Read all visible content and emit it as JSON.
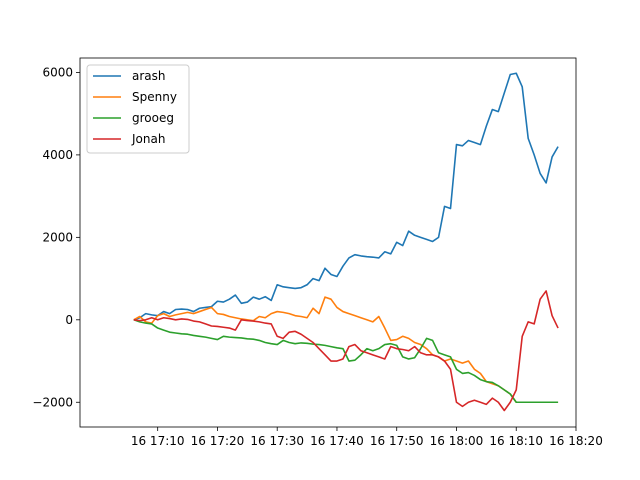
{
  "chart_data": {
    "type": "line",
    "title": "",
    "xlabel": "",
    "ylabel": "",
    "x_unit": "time of day (HH:MM), day 16",
    "xlim": [
      "16:57",
      "18:20"
    ],
    "ylim": [
      -2600,
      6350
    ],
    "x_ticks": [
      "17:10",
      "17:20",
      "17:30",
      "17:40",
      "17:50",
      "18:00",
      "18:10",
      "18:20"
    ],
    "x_tick_labels": [
      "16 17:10",
      "16 17:20",
      "16 17:30",
      "16 17:40",
      "16 17:50",
      "16 18:00",
      "16 18:10",
      "16 18:20"
    ],
    "y_ticks": [
      -2000,
      0,
      2000,
      4000,
      6000
    ],
    "y_tick_labels": [
      "−2000",
      "0",
      "2000",
      "4000",
      "6000"
    ],
    "grid": false,
    "legend_position": "top-left",
    "series": [
      {
        "name": "arash",
        "color": "#1f77b4",
        "points": [
          [
            "17:06",
            0
          ],
          [
            "17:07",
            50
          ],
          [
            "17:08",
            150
          ],
          [
            "17:09",
            120
          ],
          [
            "17:10",
            100
          ],
          [
            "17:11",
            200
          ],
          [
            "17:12",
            150
          ],
          [
            "17:13",
            250
          ],
          [
            "17:14",
            260
          ],
          [
            "17:15",
            250
          ],
          [
            "17:16",
            200
          ],
          [
            "17:17",
            280
          ],
          [
            "17:18",
            300
          ],
          [
            "17:19",
            320
          ],
          [
            "17:20",
            450
          ],
          [
            "17:21",
            430
          ],
          [
            "17:22",
            500
          ],
          [
            "17:23",
            600
          ],
          [
            "17:24",
            400
          ],
          [
            "17:25",
            430
          ],
          [
            "17:26",
            550
          ],
          [
            "17:27",
            500
          ],
          [
            "17:28",
            560
          ],
          [
            "17:29",
            470
          ],
          [
            "17:30",
            850
          ],
          [
            "17:31",
            800
          ],
          [
            "17:32",
            780
          ],
          [
            "17:33",
            760
          ],
          [
            "17:34",
            780
          ],
          [
            "17:35",
            850
          ],
          [
            "17:36",
            1000
          ],
          [
            "17:37",
            950
          ],
          [
            "17:38",
            1250
          ],
          [
            "17:39",
            1100
          ],
          [
            "17:40",
            1050
          ],
          [
            "17:41",
            1300
          ],
          [
            "17:42",
            1500
          ],
          [
            "17:43",
            1580
          ],
          [
            "17:44",
            1550
          ],
          [
            "17:45",
            1530
          ],
          [
            "17:46",
            1520
          ],
          [
            "17:47",
            1500
          ],
          [
            "17:48",
            1650
          ],
          [
            "17:49",
            1600
          ],
          [
            "17:50",
            1880
          ],
          [
            "17:51",
            1800
          ],
          [
            "17:52",
            2150
          ],
          [
            "17:53",
            2050
          ],
          [
            "17:54",
            2000
          ],
          [
            "17:55",
            1950
          ],
          [
            "17:56",
            1900
          ],
          [
            "17:57",
            2000
          ],
          [
            "17:58",
            2750
          ],
          [
            "17:59",
            2700
          ],
          [
            "18:00",
            4250
          ],
          [
            "18:01",
            4220
          ],
          [
            "18:02",
            4350
          ],
          [
            "18:03",
            4300
          ],
          [
            "18:04",
            4250
          ],
          [
            "18:05",
            4700
          ],
          [
            "18:06",
            5100
          ],
          [
            "18:07",
            5050
          ],
          [
            "18:08",
            5500
          ],
          [
            "18:09",
            5950
          ],
          [
            "18:10",
            5980
          ],
          [
            "18:11",
            5650
          ],
          [
            "18:12",
            4400
          ],
          [
            "18:13",
            4000
          ],
          [
            "18:14",
            3550
          ],
          [
            "18:15",
            3320
          ],
          [
            "18:16",
            3950
          ],
          [
            "18:17",
            4200
          ]
        ]
      },
      {
        "name": "Spenny",
        "color": "#ff7f0e",
        "points": [
          [
            "17:06",
            0
          ],
          [
            "17:07",
            80
          ],
          [
            "17:08",
            -50
          ],
          [
            "17:09",
            -80
          ],
          [
            "17:10",
            100
          ],
          [
            "17:11",
            150
          ],
          [
            "17:12",
            80
          ],
          [
            "17:13",
            120
          ],
          [
            "17:14",
            150
          ],
          [
            "17:15",
            180
          ],
          [
            "17:16",
            150
          ],
          [
            "17:17",
            200
          ],
          [
            "17:18",
            250
          ],
          [
            "17:19",
            300
          ],
          [
            "17:20",
            150
          ],
          [
            "17:21",
            130
          ],
          [
            "17:22",
            80
          ],
          [
            "17:23",
            50
          ],
          [
            "17:24",
            20
          ],
          [
            "17:25",
            0
          ],
          [
            "17:26",
            -20
          ],
          [
            "17:27",
            80
          ],
          [
            "17:28",
            50
          ],
          [
            "17:29",
            150
          ],
          [
            "17:30",
            200
          ],
          [
            "17:31",
            180
          ],
          [
            "17:32",
            150
          ],
          [
            "17:33",
            100
          ],
          [
            "17:34",
            80
          ],
          [
            "17:35",
            50
          ],
          [
            "17:36",
            280
          ],
          [
            "17:37",
            150
          ],
          [
            "17:38",
            550
          ],
          [
            "17:39",
            500
          ],
          [
            "17:40",
            300
          ],
          [
            "17:41",
            200
          ],
          [
            "17:42",
            150
          ],
          [
            "17:43",
            100
          ],
          [
            "17:44",
            50
          ],
          [
            "17:45",
            0
          ],
          [
            "17:46",
            -50
          ],
          [
            "17:47",
            80
          ],
          [
            "17:48",
            -200
          ],
          [
            "17:49",
            -500
          ],
          [
            "17:50",
            -480
          ],
          [
            "17:51",
            -400
          ],
          [
            "17:52",
            -450
          ],
          [
            "17:53",
            -550
          ],
          [
            "17:54",
            -600
          ],
          [
            "17:55",
            -700
          ],
          [
            "17:56",
            -850
          ],
          [
            "17:57",
            -900
          ],
          [
            "17:58",
            -1000
          ],
          [
            "17:59",
            -950
          ],
          [
            "18:00",
            -1000
          ],
          [
            "18:01",
            -1050
          ],
          [
            "18:02",
            -1000
          ],
          [
            "18:03",
            -1200
          ],
          [
            "18:04",
            -1300
          ],
          [
            "18:05",
            -1500
          ],
          [
            "18:06",
            -1550
          ],
          [
            "18:07",
            -1600
          ],
          [
            "18:08",
            -1700
          ],
          [
            "18:09",
            -1800
          ],
          [
            "18:10",
            -2000
          ],
          [
            "18:11",
            -2000
          ],
          [
            "18:12",
            -2000
          ],
          [
            "18:13",
            -2000
          ],
          [
            "18:14",
            -2000
          ],
          [
            "18:15",
            -2000
          ],
          [
            "18:16",
            -2000
          ],
          [
            "18:17",
            -2000
          ]
        ]
      },
      {
        "name": "grooeg",
        "color": "#2ca02c",
        "points": [
          [
            "17:06",
            0
          ],
          [
            "17:07",
            -50
          ],
          [
            "17:08",
            -80
          ],
          [
            "17:09",
            -100
          ],
          [
            "17:10",
            -200
          ],
          [
            "17:11",
            -250
          ],
          [
            "17:12",
            -300
          ],
          [
            "17:13",
            -320
          ],
          [
            "17:14",
            -340
          ],
          [
            "17:15",
            -350
          ],
          [
            "17:16",
            -380
          ],
          [
            "17:17",
            -400
          ],
          [
            "17:18",
            -420
          ],
          [
            "17:19",
            -450
          ],
          [
            "17:20",
            -480
          ],
          [
            "17:21",
            -400
          ],
          [
            "17:22",
            -420
          ],
          [
            "17:23",
            -430
          ],
          [
            "17:24",
            -440
          ],
          [
            "17:25",
            -460
          ],
          [
            "17:26",
            -470
          ],
          [
            "17:27",
            -500
          ],
          [
            "17:28",
            -550
          ],
          [
            "17:29",
            -580
          ],
          [
            "17:30",
            -600
          ],
          [
            "17:31",
            -500
          ],
          [
            "17:32",
            -550
          ],
          [
            "17:33",
            -580
          ],
          [
            "17:34",
            -560
          ],
          [
            "17:35",
            -570
          ],
          [
            "17:36",
            -590
          ],
          [
            "17:37",
            -600
          ],
          [
            "17:38",
            -620
          ],
          [
            "17:39",
            -650
          ],
          [
            "17:40",
            -680
          ],
          [
            "17:41",
            -700
          ],
          [
            "17:42",
            -1000
          ],
          [
            "17:43",
            -980
          ],
          [
            "17:44",
            -850
          ],
          [
            "17:45",
            -700
          ],
          [
            "17:46",
            -750
          ],
          [
            "17:47",
            -700
          ],
          [
            "17:48",
            -600
          ],
          [
            "17:49",
            -580
          ],
          [
            "17:50",
            -620
          ],
          [
            "17:51",
            -900
          ],
          [
            "17:52",
            -950
          ],
          [
            "17:53",
            -920
          ],
          [
            "17:54",
            -700
          ],
          [
            "17:55",
            -450
          ],
          [
            "17:56",
            -500
          ],
          [
            "17:57",
            -800
          ],
          [
            "17:58",
            -850
          ],
          [
            "17:59",
            -900
          ],
          [
            "18:00",
            -1200
          ],
          [
            "18:01",
            -1300
          ],
          [
            "18:02",
            -1280
          ],
          [
            "18:03",
            -1350
          ],
          [
            "18:04",
            -1450
          ],
          [
            "18:05",
            -1500
          ],
          [
            "18:06",
            -1520
          ],
          [
            "18:07",
            -1600
          ],
          [
            "18:08",
            -1700
          ],
          [
            "18:09",
            -1800
          ],
          [
            "18:10",
            -2000
          ],
          [
            "18:11",
            -2000
          ],
          [
            "18:12",
            -2000
          ],
          [
            "18:13",
            -2000
          ],
          [
            "18:14",
            -2000
          ],
          [
            "18:15",
            -2000
          ],
          [
            "18:16",
            -2000
          ],
          [
            "18:17",
            -2000
          ]
        ]
      },
      {
        "name": "Jonah",
        "color": "#d62728",
        "points": [
          [
            "17:06",
            0
          ],
          [
            "17:07",
            -20
          ],
          [
            "17:08",
            0
          ],
          [
            "17:09",
            50
          ],
          [
            "17:10",
            0
          ],
          [
            "17:11",
            50
          ],
          [
            "17:12",
            30
          ],
          [
            "17:13",
            0
          ],
          [
            "17:14",
            20
          ],
          [
            "17:15",
            10
          ],
          [
            "17:16",
            -30
          ],
          [
            "17:17",
            -50
          ],
          [
            "17:18",
            -100
          ],
          [
            "17:19",
            -150
          ],
          [
            "17:20",
            -160
          ],
          [
            "17:21",
            -180
          ],
          [
            "17:22",
            -200
          ],
          [
            "17:23",
            -250
          ],
          [
            "17:24",
            0
          ],
          [
            "17:25",
            -20
          ],
          [
            "17:26",
            -30
          ],
          [
            "17:27",
            -50
          ],
          [
            "17:28",
            -80
          ],
          [
            "17:29",
            -100
          ],
          [
            "17:30",
            -400
          ],
          [
            "17:31",
            -450
          ],
          [
            "17:32",
            -300
          ],
          [
            "17:33",
            -280
          ],
          [
            "17:34",
            -350
          ],
          [
            "17:35",
            -450
          ],
          [
            "17:36",
            -550
          ],
          [
            "17:37",
            -700
          ],
          [
            "17:38",
            -850
          ],
          [
            "17:39",
            -1000
          ],
          [
            "17:40",
            -1000
          ],
          [
            "17:41",
            -950
          ],
          [
            "17:42",
            -650
          ],
          [
            "17:43",
            -600
          ],
          [
            "17:44",
            -750
          ],
          [
            "17:45",
            -800
          ],
          [
            "17:46",
            -850
          ],
          [
            "17:47",
            -900
          ],
          [
            "17:48",
            -950
          ],
          [
            "17:49",
            -650
          ],
          [
            "17:50",
            -700
          ],
          [
            "17:51",
            -720
          ],
          [
            "17:52",
            -750
          ],
          [
            "17:53",
            -650
          ],
          [
            "17:54",
            -800
          ],
          [
            "17:55",
            -850
          ],
          [
            "17:56",
            -850
          ],
          [
            "17:57",
            -900
          ],
          [
            "17:58",
            -1000
          ],
          [
            "17:59",
            -1200
          ],
          [
            "18:00",
            -2000
          ],
          [
            "18:01",
            -2100
          ],
          [
            "18:02",
            -2000
          ],
          [
            "18:03",
            -1950
          ],
          [
            "18:04",
            -2000
          ],
          [
            "18:05",
            -2050
          ],
          [
            "18:06",
            -1900
          ],
          [
            "18:07",
            -2000
          ],
          [
            "18:08",
            -2200
          ],
          [
            "18:09",
            -2000
          ],
          [
            "18:10",
            -1700
          ],
          [
            "18:11",
            -400
          ],
          [
            "18:12",
            -50
          ],
          [
            "18:13",
            -100
          ],
          [
            "18:14",
            500
          ],
          [
            "18:15",
            700
          ],
          [
            "18:16",
            100
          ],
          [
            "18:17",
            -200
          ]
        ]
      }
    ]
  }
}
